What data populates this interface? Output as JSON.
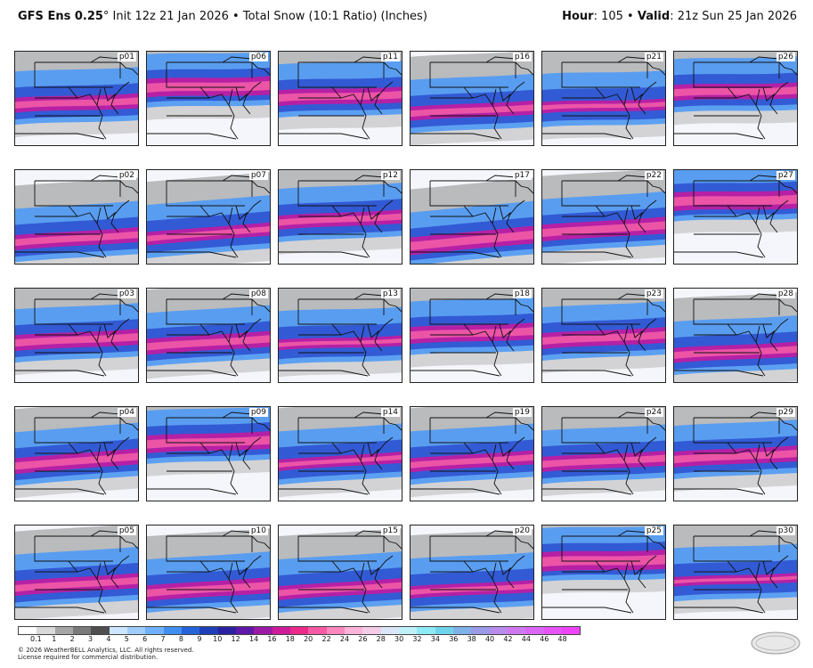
{
  "header": {
    "model": "GFS Ens 0.25",
    "degree": "°",
    "init": " Init 12z 21 Jan 2026",
    "bullet": " • ",
    "product": "Total Snow (10:1 Ratio) (Inches)",
    "hour_label": "Hour",
    "hour_value": ": 105",
    "valid_label": "Valid",
    "valid_value": ": 21z Sun 25 Jan 2026"
  },
  "panels": [
    {
      "label": "p01",
      "intensity": 0.65,
      "axis": 0.52,
      "tilt": -6
    },
    {
      "label": "p06",
      "intensity": 0.85,
      "axis": 0.35,
      "tilt": -4
    },
    {
      "label": "p11",
      "intensity": 0.7,
      "axis": 0.45,
      "tilt": -5
    },
    {
      "label": "p16",
      "intensity": 0.6,
      "axis": 0.6,
      "tilt": -8
    },
    {
      "label": "p21",
      "intensity": 0.45,
      "axis": 0.55,
      "tilt": -5
    },
    {
      "label": "p26",
      "intensity": 0.7,
      "axis": 0.4,
      "tilt": -4
    },
    {
      "label": "p02",
      "intensity": 0.65,
      "axis": 0.7,
      "tilt": -10
    },
    {
      "label": "p07",
      "intensity": 0.55,
      "axis": 0.65,
      "tilt": -12
    },
    {
      "label": "p12",
      "intensity": 0.6,
      "axis": 0.5,
      "tilt": -8
    },
    {
      "label": "p17",
      "intensity": 0.8,
      "axis": 0.72,
      "tilt": -14
    },
    {
      "label": "p22",
      "intensity": 0.75,
      "axis": 0.6,
      "tilt": -10
    },
    {
      "label": "p27",
      "intensity": 0.85,
      "axis": 0.3,
      "tilt": -4
    },
    {
      "label": "p03",
      "intensity": 0.7,
      "axis": 0.52,
      "tilt": -8
    },
    {
      "label": "p08",
      "intensity": 0.7,
      "axis": 0.55,
      "tilt": -10
    },
    {
      "label": "p13",
      "intensity": 0.4,
      "axis": 0.55,
      "tilt": -6
    },
    {
      "label": "p18",
      "intensity": 0.75,
      "axis": 0.45,
      "tilt": -6
    },
    {
      "label": "p23",
      "intensity": 0.7,
      "axis": 0.5,
      "tilt": -8
    },
    {
      "label": "p28",
      "intensity": 0.65,
      "axis": 0.65,
      "tilt": -8
    },
    {
      "label": "p04",
      "intensity": 0.7,
      "axis": 0.55,
      "tilt": -12
    },
    {
      "label": "p09",
      "intensity": 0.8,
      "axis": 0.35,
      "tilt": -6
    },
    {
      "label": "p14",
      "intensity": 0.45,
      "axis": 0.55,
      "tilt": -10
    },
    {
      "label": "p19",
      "intensity": 0.6,
      "axis": 0.55,
      "tilt": -10
    },
    {
      "label": "p24",
      "intensity": 0.65,
      "axis": 0.55,
      "tilt": -8
    },
    {
      "label": "p29",
      "intensity": 0.7,
      "axis": 0.5,
      "tilt": -8
    },
    {
      "label": "p05",
      "intensity": 0.65,
      "axis": 0.6,
      "tilt": -10
    },
    {
      "label": "p10",
      "intensity": 0.7,
      "axis": 0.65,
      "tilt": -10
    },
    {
      "label": "p15",
      "intensity": 0.6,
      "axis": 0.65,
      "tilt": -10
    },
    {
      "label": "p20",
      "intensity": 0.5,
      "axis": 0.65,
      "tilt": -8
    },
    {
      "label": "p25",
      "intensity": 0.9,
      "axis": 0.35,
      "tilt": -4
    },
    {
      "label": "p30",
      "intensity": 0.35,
      "axis": 0.55,
      "tilt": -6
    }
  ],
  "colorbar": {
    "colors": [
      "#ffffff",
      "#d9d9d9",
      "#a6a6a6",
      "#7a7a7a",
      "#4f4f4f",
      "#cde6ff",
      "#9fcdfd",
      "#6fb2fb",
      "#3f8ff0",
      "#2563d9",
      "#1f3fb8",
      "#2b21a1",
      "#5e18a8",
      "#9a1aa6",
      "#cc1c99",
      "#ec2a8a",
      "#f75aa4",
      "#fa88bf",
      "#fcb4d8",
      "#f3cde8",
      "#d9e6f7",
      "#bff0fa",
      "#8eeaf5",
      "#6fd4ea",
      "#7fb3e8",
      "#9a9ae6",
      "#b98bec",
      "#cf79f0",
      "#db66f4",
      "#e653f6",
      "#ee44f8"
    ],
    "labels": [
      "0.1",
      "1",
      "2",
      "3",
      "4",
      "5",
      "6",
      "7",
      "8",
      "9",
      "10",
      "12",
      "14",
      "16",
      "18",
      "20",
      "22",
      "24",
      "26",
      "28",
      "30",
      "32",
      "34",
      "36",
      "38",
      "40",
      "42",
      "44",
      "46",
      "48"
    ]
  },
  "footer": {
    "copyright": "© 2026 WeatherBELL Analytics, LLC. All rights reserved.",
    "license": "License required for commercial distribution.",
    "logo_text": "WeatherBELL"
  }
}
